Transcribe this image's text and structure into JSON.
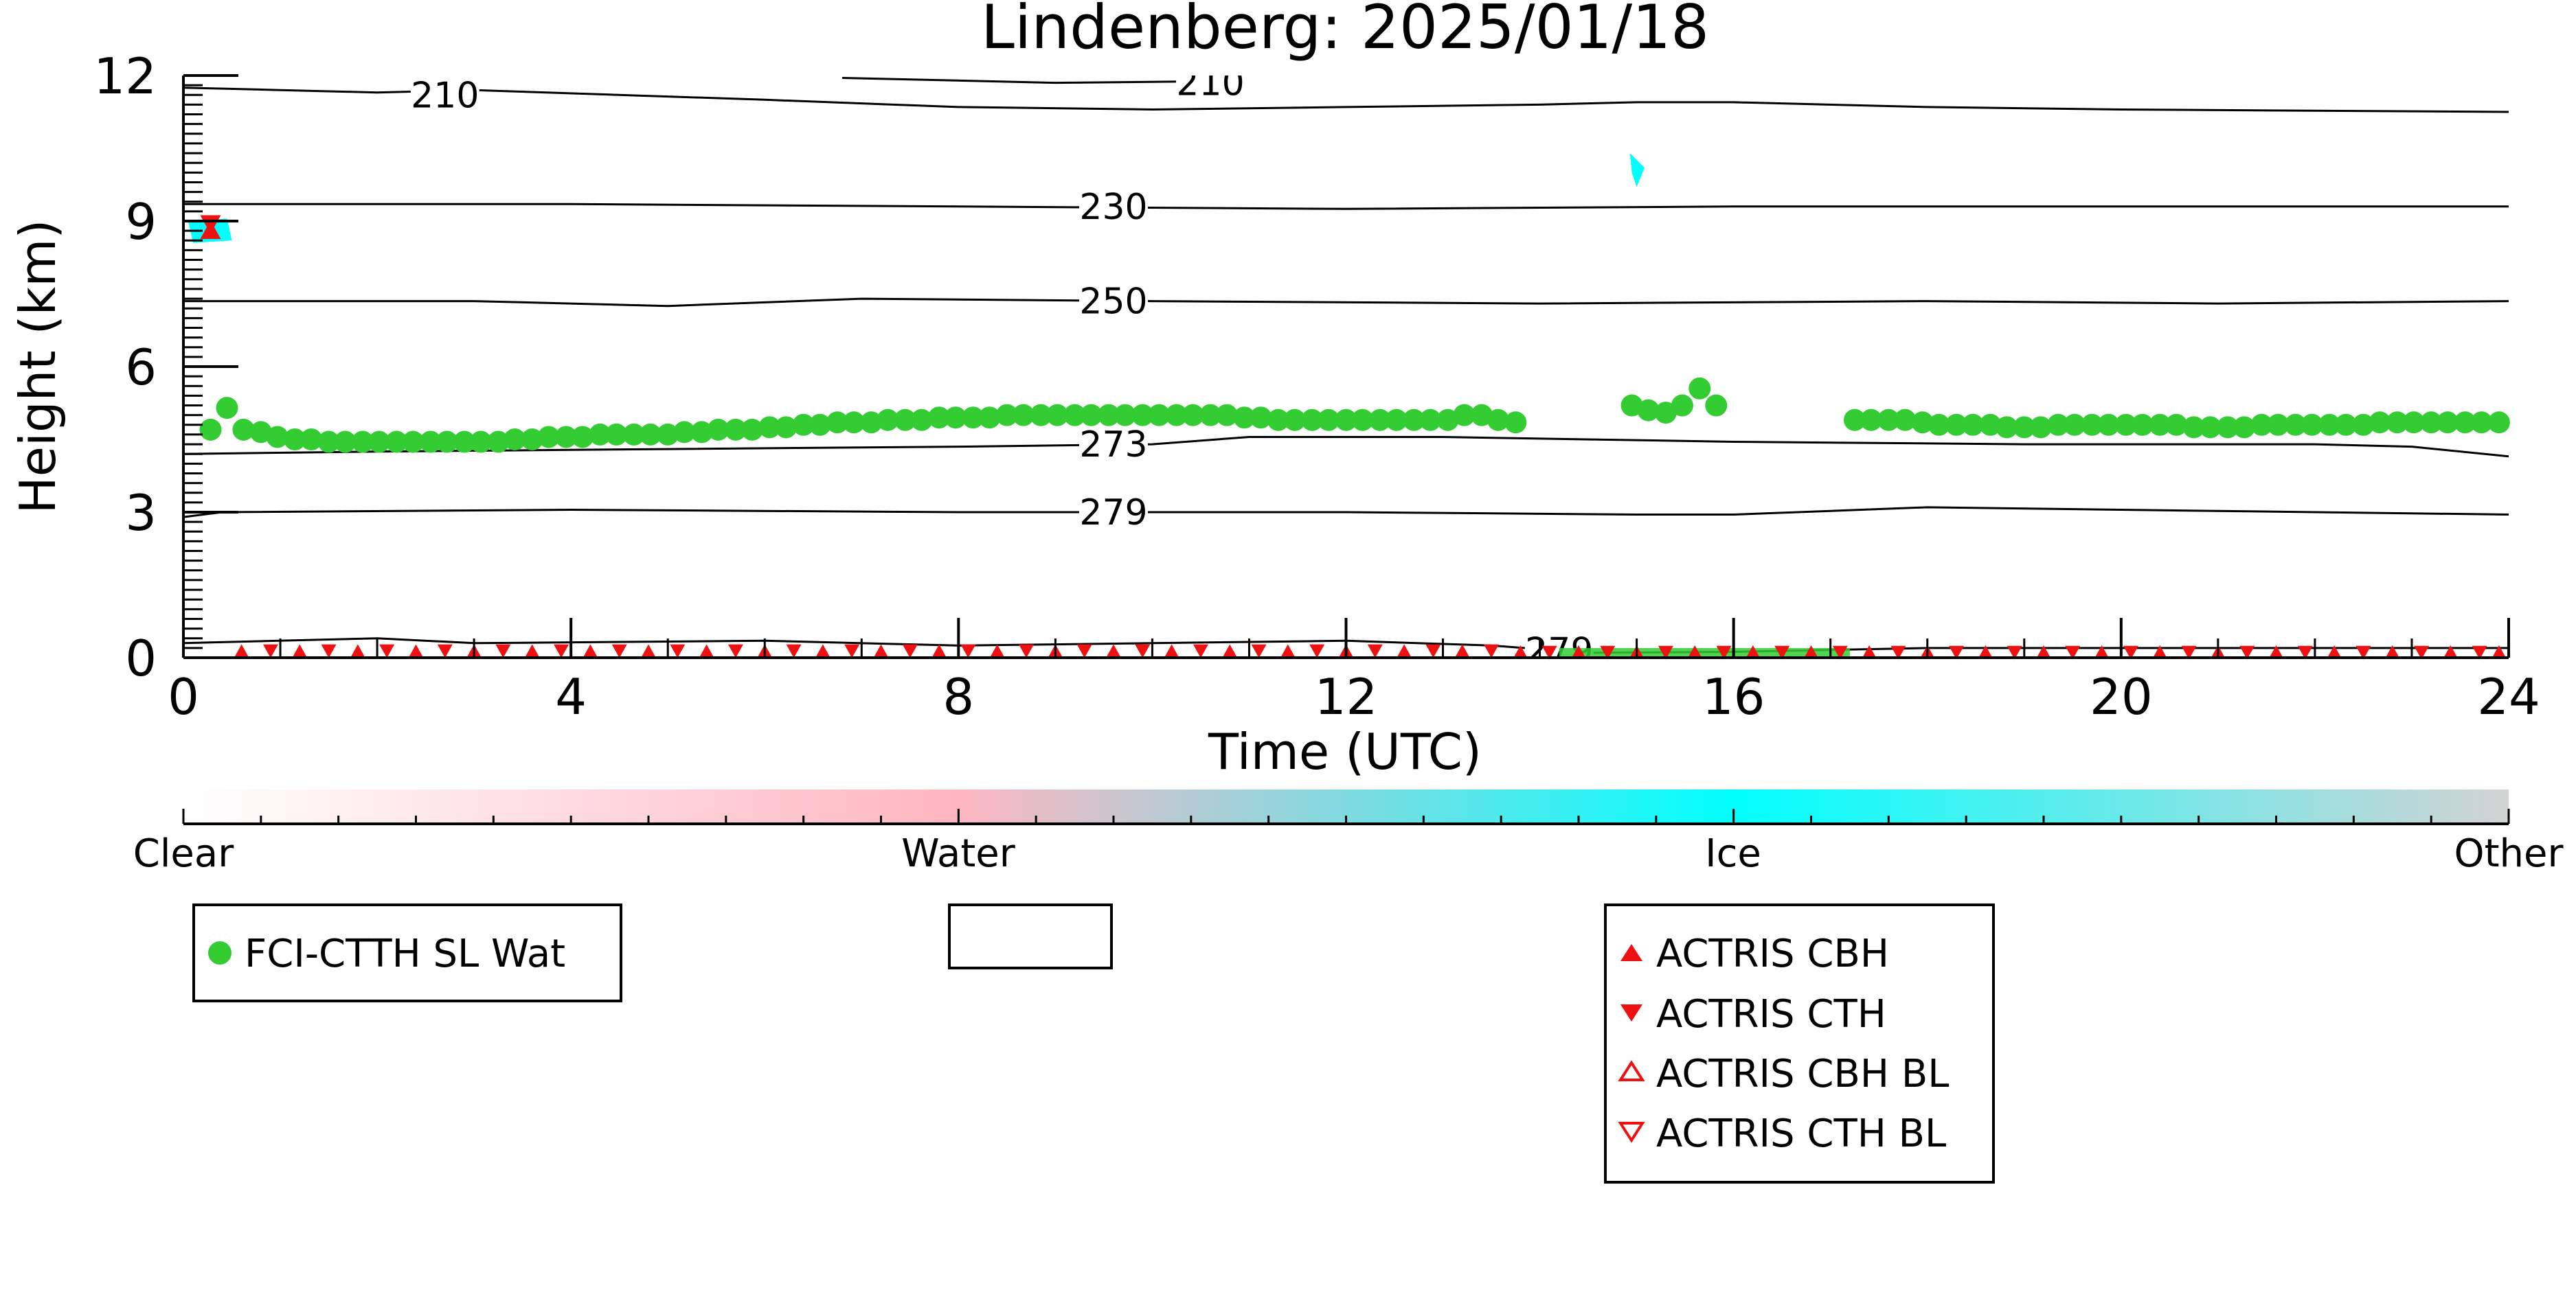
{
  "chart_data": {
    "type": "scatter",
    "title": "Lindenberg: 2025/01/18",
    "xlabel": "Time (UTC)",
    "ylabel": "Height (km)",
    "xlim": [
      0,
      24
    ],
    "ylim": [
      0,
      12
    ],
    "xticks": [
      "0",
      "4",
      "8",
      "12",
      "16",
      "20",
      "24"
    ],
    "yticks": [
      "0",
      "3",
      "6",
      "9",
      "12"
    ],
    "grid": false,
    "series": [
      {
        "name": "FCI-CTTH SL Wat",
        "marker": "circle-filled",
        "color": "#33cc33",
        "points": [
          [
            0.28,
            4.7
          ],
          [
            0.45,
            5.15
          ],
          [
            0.62,
            4.7
          ],
          [
            0.8,
            4.65
          ],
          [
            0.97,
            4.55
          ],
          [
            1.15,
            4.5
          ],
          [
            1.32,
            4.5
          ],
          [
            1.5,
            4.45
          ],
          [
            1.67,
            4.45
          ],
          [
            1.85,
            4.45
          ],
          [
            2.02,
            4.45
          ],
          [
            2.2,
            4.45
          ],
          [
            2.37,
            4.45
          ],
          [
            2.55,
            4.45
          ],
          [
            2.72,
            4.45
          ],
          [
            2.9,
            4.45
          ],
          [
            3.07,
            4.45
          ],
          [
            3.25,
            4.45
          ],
          [
            3.42,
            4.5
          ],
          [
            3.6,
            4.5
          ],
          [
            3.77,
            4.55
          ],
          [
            3.95,
            4.55
          ],
          [
            4.12,
            4.55
          ],
          [
            4.3,
            4.6
          ],
          [
            4.47,
            4.6
          ],
          [
            4.65,
            4.6
          ],
          [
            4.82,
            4.6
          ],
          [
            5.0,
            4.6
          ],
          [
            5.17,
            4.65
          ],
          [
            5.35,
            4.65
          ],
          [
            5.52,
            4.7
          ],
          [
            5.7,
            4.7
          ],
          [
            5.87,
            4.7
          ],
          [
            6.05,
            4.75
          ],
          [
            6.22,
            4.75
          ],
          [
            6.4,
            4.8
          ],
          [
            6.57,
            4.8
          ],
          [
            6.75,
            4.85
          ],
          [
            6.92,
            4.85
          ],
          [
            7.1,
            4.85
          ],
          [
            7.27,
            4.9
          ],
          [
            7.45,
            4.9
          ],
          [
            7.62,
            4.9
          ],
          [
            7.8,
            4.95
          ],
          [
            7.97,
            4.95
          ],
          [
            8.15,
            4.95
          ],
          [
            8.32,
            4.95
          ],
          [
            8.5,
            5.0
          ],
          [
            8.67,
            5.0
          ],
          [
            8.85,
            5.0
          ],
          [
            9.02,
            5.0
          ],
          [
            9.2,
            5.0
          ],
          [
            9.37,
            5.0
          ],
          [
            9.55,
            5.0
          ],
          [
            9.72,
            5.0
          ],
          [
            9.9,
            5.0
          ],
          [
            10.07,
            5.0
          ],
          [
            10.25,
            5.0
          ],
          [
            10.42,
            5.0
          ],
          [
            10.6,
            5.0
          ],
          [
            10.77,
            5.0
          ],
          [
            10.95,
            4.95
          ],
          [
            11.12,
            4.95
          ],
          [
            11.3,
            4.9
          ],
          [
            11.47,
            4.9
          ],
          [
            11.65,
            4.9
          ],
          [
            11.82,
            4.9
          ],
          [
            12.0,
            4.9
          ],
          [
            12.17,
            4.9
          ],
          [
            12.35,
            4.9
          ],
          [
            12.52,
            4.9
          ],
          [
            12.7,
            4.9
          ],
          [
            12.87,
            4.9
          ],
          [
            13.05,
            4.9
          ],
          [
            13.22,
            5.0
          ],
          [
            13.4,
            5.0
          ],
          [
            13.57,
            4.9
          ],
          [
            13.75,
            4.85
          ],
          [
            14.95,
            5.2
          ],
          [
            15.12,
            5.1
          ],
          [
            15.3,
            5.05
          ],
          [
            15.47,
            5.2
          ],
          [
            15.65,
            5.55
          ],
          [
            15.82,
            5.2
          ],
          [
            17.25,
            4.9
          ],
          [
            17.42,
            4.9
          ],
          [
            17.6,
            4.9
          ],
          [
            17.77,
            4.9
          ],
          [
            17.95,
            4.85
          ],
          [
            18.12,
            4.8
          ],
          [
            18.3,
            4.8
          ],
          [
            18.47,
            4.8
          ],
          [
            18.65,
            4.8
          ],
          [
            18.82,
            4.75
          ],
          [
            19.0,
            4.75
          ],
          [
            19.17,
            4.75
          ],
          [
            19.35,
            4.8
          ],
          [
            19.52,
            4.8
          ],
          [
            19.7,
            4.8
          ],
          [
            19.87,
            4.8
          ],
          [
            20.05,
            4.8
          ],
          [
            20.22,
            4.8
          ],
          [
            20.4,
            4.8
          ],
          [
            20.57,
            4.8
          ],
          [
            20.75,
            4.75
          ],
          [
            20.92,
            4.75
          ],
          [
            21.1,
            4.75
          ],
          [
            21.27,
            4.75
          ],
          [
            21.45,
            4.8
          ],
          [
            21.62,
            4.8
          ],
          [
            21.8,
            4.8
          ],
          [
            21.97,
            4.8
          ],
          [
            22.15,
            4.8
          ],
          [
            22.32,
            4.8
          ],
          [
            22.5,
            4.8
          ],
          [
            22.67,
            4.85
          ],
          [
            22.85,
            4.85
          ],
          [
            23.02,
            4.85
          ],
          [
            23.2,
            4.85
          ],
          [
            23.37,
            4.85
          ],
          [
            23.55,
            4.85
          ],
          [
            23.72,
            4.85
          ],
          [
            23.9,
            4.85
          ]
        ]
      },
      {
        "name": "ACTRIS CBH",
        "marker": "triangle-up-filled",
        "color": "#ee1111",
        "points": [
          [
            0.28,
            8.8
          ],
          [
            0.6,
            0.12
          ],
          [
            1.2,
            0.12
          ],
          [
            1.8,
            0.12
          ],
          [
            2.4,
            0.12
          ],
          [
            3.0,
            0.12
          ],
          [
            3.6,
            0.12
          ],
          [
            4.2,
            0.12
          ],
          [
            4.8,
            0.12
          ],
          [
            5.4,
            0.12
          ],
          [
            6.0,
            0.12
          ],
          [
            6.6,
            0.12
          ],
          [
            7.2,
            0.12
          ],
          [
            7.8,
            0.12
          ],
          [
            8.4,
            0.12
          ],
          [
            9.0,
            0.12
          ],
          [
            9.6,
            0.12
          ],
          [
            10.2,
            0.12
          ],
          [
            10.8,
            0.12
          ],
          [
            11.4,
            0.12
          ],
          [
            12.0,
            0.12
          ],
          [
            12.6,
            0.12
          ],
          [
            13.2,
            0.12
          ],
          [
            13.8,
            0.1
          ],
          [
            14.4,
            0.1
          ],
          [
            15.0,
            0.1
          ],
          [
            15.6,
            0.1
          ],
          [
            16.2,
            0.1
          ],
          [
            16.8,
            0.1
          ],
          [
            17.4,
            0.1
          ],
          [
            18.0,
            0.1
          ],
          [
            18.6,
            0.1
          ],
          [
            19.2,
            0.1
          ],
          [
            19.8,
            0.1
          ],
          [
            20.4,
            0.1
          ],
          [
            21.0,
            0.1
          ],
          [
            21.6,
            0.1
          ],
          [
            22.2,
            0.1
          ],
          [
            22.8,
            0.1
          ],
          [
            23.4,
            0.1
          ],
          [
            23.9,
            0.1
          ]
        ]
      },
      {
        "name": "ACTRIS CTH",
        "marker": "triangle-down-filled",
        "color": "#ee1111",
        "points": [
          [
            0.28,
            8.95
          ],
          [
            0.9,
            0.15
          ],
          [
            1.5,
            0.15
          ],
          [
            2.1,
            0.15
          ],
          [
            2.7,
            0.15
          ],
          [
            3.3,
            0.15
          ],
          [
            3.9,
            0.15
          ],
          [
            4.5,
            0.15
          ],
          [
            5.1,
            0.15
          ],
          [
            5.7,
            0.15
          ],
          [
            6.3,
            0.15
          ],
          [
            6.9,
            0.15
          ],
          [
            7.5,
            0.15
          ],
          [
            8.1,
            0.15
          ],
          [
            8.7,
            0.15
          ],
          [
            9.3,
            0.15
          ],
          [
            9.9,
            0.15
          ],
          [
            10.5,
            0.15
          ],
          [
            11.1,
            0.15
          ],
          [
            11.7,
            0.15
          ],
          [
            12.3,
            0.15
          ],
          [
            12.9,
            0.15
          ],
          [
            13.5,
            0.15
          ],
          [
            14.1,
            0.12
          ],
          [
            14.7,
            0.12
          ],
          [
            15.3,
            0.12
          ],
          [
            15.9,
            0.12
          ],
          [
            16.5,
            0.12
          ],
          [
            17.1,
            0.12
          ],
          [
            17.7,
            0.12
          ],
          [
            18.3,
            0.12
          ],
          [
            18.9,
            0.12
          ],
          [
            19.5,
            0.12
          ],
          [
            20.1,
            0.12
          ],
          [
            20.7,
            0.12
          ],
          [
            21.3,
            0.12
          ],
          [
            21.9,
            0.12
          ],
          [
            22.5,
            0.12
          ],
          [
            23.1,
            0.12
          ],
          [
            23.7,
            0.12
          ]
        ]
      },
      {
        "name": "ACTRIS CBH BL",
        "marker": "triangle-up-open",
        "color": "#ee1111",
        "points": []
      },
      {
        "name": "ACTRIS CTH BL",
        "marker": "triangle-down-open",
        "color": "#ee1111",
        "points": []
      }
    ],
    "contours": [
      {
        "label": "210",
        "points": [
          [
            0,
            11.75
          ],
          [
            1,
            11.7
          ],
          [
            2,
            11.65
          ],
          [
            3,
            11.7
          ],
          [
            6,
            11.5
          ],
          [
            8,
            11.35
          ],
          [
            10,
            11.3
          ],
          [
            12,
            11.35
          ],
          [
            14,
            11.4
          ],
          [
            15,
            11.45
          ],
          [
            16,
            11.45
          ],
          [
            18,
            11.35
          ],
          [
            20,
            11.3
          ],
          [
            24,
            11.25
          ]
        ],
        "label_at": [
          2.7,
          11.6
        ]
      },
      {
        "label": "210",
        "points": [
          [
            6.8,
            11.95
          ],
          [
            9,
            11.85
          ],
          [
            10.5,
            11.88
          ]
        ],
        "label_at": [
          10.6,
          11.85
        ]
      },
      {
        "label": "230",
        "points": [
          [
            0,
            9.35
          ],
          [
            4,
            9.35
          ],
          [
            8,
            9.3
          ],
          [
            12,
            9.25
          ],
          [
            16,
            9.3
          ],
          [
            20,
            9.3
          ],
          [
            24,
            9.3
          ]
        ],
        "label_at": [
          9.6,
          9.3
        ]
      },
      {
        "label": "250",
        "points": [
          [
            0,
            7.35
          ],
          [
            3,
            7.35
          ],
          [
            5,
            7.25
          ],
          [
            7,
            7.4
          ],
          [
            10,
            7.35
          ],
          [
            14,
            7.3
          ],
          [
            18,
            7.35
          ],
          [
            21,
            7.3
          ],
          [
            24,
            7.35
          ]
        ],
        "label_at": [
          9.6,
          7.35
        ]
      },
      {
        "label": "273",
        "points": [
          [
            0,
            4.2
          ],
          [
            2,
            4.25
          ],
          [
            5,
            4.3
          ],
          [
            8,
            4.35
          ],
          [
            10,
            4.4
          ],
          [
            11,
            4.55
          ],
          [
            13,
            4.55
          ],
          [
            16,
            4.45
          ],
          [
            19,
            4.4
          ],
          [
            22,
            4.4
          ],
          [
            23,
            4.35
          ],
          [
            24,
            4.15
          ]
        ],
        "label_at": [
          9.6,
          4.4
        ]
      },
      {
        "label": "279",
        "points": [
          [
            0,
            2.9
          ],
          [
            0.4,
            3.0
          ],
          [
            4,
            3.05
          ],
          [
            8,
            3.0
          ],
          [
            12,
            3.0
          ],
          [
            15,
            2.95
          ],
          [
            16,
            2.95
          ],
          [
            18,
            3.1
          ],
          [
            20,
            3.05
          ],
          [
            22,
            3.0
          ],
          [
            24,
            2.95
          ]
        ],
        "label_at": [
          9.6,
          3.0
        ]
      },
      {
        "label": "",
        "points": [
          [
            0,
            0.3
          ],
          [
            2,
            0.4
          ],
          [
            3,
            0.3
          ],
          [
            6,
            0.35
          ],
          [
            8,
            0.25
          ],
          [
            10,
            0.3
          ],
          [
            12,
            0.35
          ],
          [
            13.5,
            0.25
          ],
          [
            14.5,
            0.1
          ],
          [
            16,
            0.12
          ],
          [
            18,
            0.2
          ],
          [
            24,
            0.2
          ]
        ],
        "label_at": null
      },
      {
        "label": "279",
        "points": [],
        "label_at": [
          14.2,
          0.15
        ]
      }
    ],
    "colorbar": {
      "labels": [
        "Clear",
        "Water",
        "Ice",
        "Other"
      ],
      "colors": [
        "#ffffff",
        "#ffb6c1",
        "#00ffff",
        "#d3d3d3"
      ]
    },
    "legend_empty_box": true,
    "colors": {
      "axis": "#000000",
      "fci": "#33cc33",
      "actris": "#ee1111",
      "ice": "#00ffff",
      "ground": "#33cc33"
    }
  }
}
